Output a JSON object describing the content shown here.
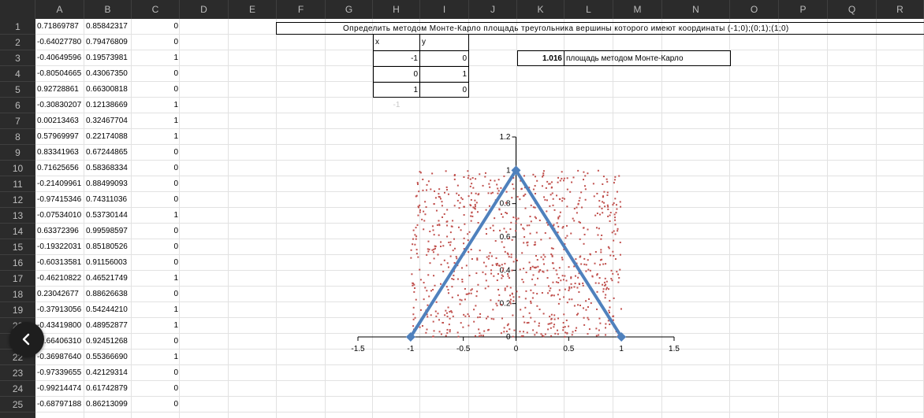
{
  "columns": [
    "A",
    "B",
    "C",
    "D",
    "E",
    "F",
    "G",
    "H",
    "I",
    "J",
    "K",
    "L",
    "M",
    "N",
    "O",
    "P",
    "Q",
    "R"
  ],
  "rows": [
    "1",
    "2",
    "3",
    "4",
    "5",
    "6",
    "7",
    "8",
    "9",
    "10",
    "11",
    "12",
    "13",
    "14",
    "15",
    "16",
    "17",
    "18",
    "19",
    "20",
    "21",
    "22",
    "23",
    "24",
    "25"
  ],
  "data_rows": [
    {
      "a": "0.71869787",
      "b": "0.85842317",
      "c": "0"
    },
    {
      "a": "-0.64027780",
      "b": "0.79476809",
      "c": "0"
    },
    {
      "a": "-0.40649596",
      "b": "0.19573981",
      "c": "1"
    },
    {
      "a": "-0.80504665",
      "b": "0.43067350",
      "c": "0"
    },
    {
      "a": "0.92728861",
      "b": "0.66300818",
      "c": "0"
    },
    {
      "a": "-0.30830207",
      "b": "0.12138669",
      "c": "1"
    },
    {
      "a": "0.00213463",
      "b": "0.32467704",
      "c": "1"
    },
    {
      "a": "0.57969997",
      "b": "0.22174088",
      "c": "1"
    },
    {
      "a": "0.83341963",
      "b": "0.67244865",
      "c": "0"
    },
    {
      "a": "0.71625656",
      "b": "0.58368334",
      "c": "0"
    },
    {
      "a": "-0.21409961",
      "b": "0.88499093",
      "c": "0"
    },
    {
      "a": "-0.97415346",
      "b": "0.74311036",
      "c": "0"
    },
    {
      "a": "-0.07534010",
      "b": "0.53730144",
      "c": "1"
    },
    {
      "a": "0.63372396",
      "b": "0.99598597",
      "c": "0"
    },
    {
      "a": "-0.19322031",
      "b": "0.85180526",
      "c": "0"
    },
    {
      "a": "-0.60313581",
      "b": "0.91156003",
      "c": "0"
    },
    {
      "a": "-0.46210822",
      "b": "0.46521749",
      "c": "1"
    },
    {
      "a": "0.23042677",
      "b": "0.88626638",
      "c": "0"
    },
    {
      "a": "-0.37913056",
      "b": "0.54244210",
      "c": "1"
    },
    {
      "a": "-0.43419800",
      "b": "0.48952877",
      "c": "1"
    },
    {
      "a": "-0.66406310",
      "b": "0.92451268",
      "c": "0"
    },
    {
      "a": "-0.36987640",
      "b": "0.55366690",
      "c": "1"
    },
    {
      "a": "-0.97339655",
      "b": "0.42129314",
      "c": "0"
    },
    {
      "a": "-0.99214474",
      "b": "0.61742879",
      "c": "0"
    },
    {
      "a": "-0.68797188",
      "b": "0.86213099",
      "c": "0"
    }
  ],
  "title": "Определить методом Монте-Карло площадь треугольника вершины которого имеют координаты (-1;0);(0;1);(1;0)",
  "coords_table": {
    "x_header": "x",
    "y_header": "y",
    "rows": [
      {
        "x": "-1",
        "y": "0"
      },
      {
        "x": "0",
        "y": "1"
      },
      {
        "x": "1",
        "y": "0"
      }
    ],
    "faded_value": "-1"
  },
  "result": {
    "value": "1.016",
    "label": "площадь методом Монте-Карло"
  },
  "colors": {
    "triangle": "#4f81bd",
    "points": "#c0504d",
    "header_bg": "#2b2b2b"
  },
  "icons": {
    "back_button": "chevron-left-icon"
  },
  "chart_data": {
    "type": "scatter",
    "xlim": [
      -1.5,
      1.5
    ],
    "ylim": [
      0,
      1.2
    ],
    "x_ticks": [
      "-1.5",
      "-1",
      "-0.5",
      "0",
      "0.5",
      "1",
      "1.5"
    ],
    "y_ticks": [
      "0",
      "0.2",
      "0.4",
      "0.6",
      "0.8",
      "1",
      "1.2"
    ],
    "series": [
      {
        "kind": "line-with-markers",
        "points": [
          [
            -1,
            0
          ],
          [
            0,
            1
          ],
          [
            1,
            0
          ]
        ]
      },
      {
        "kind": "random-points",
        "count": 900,
        "x_range": [
          -1,
          1
        ],
        "y_range": [
          0,
          1
        ]
      }
    ]
  }
}
